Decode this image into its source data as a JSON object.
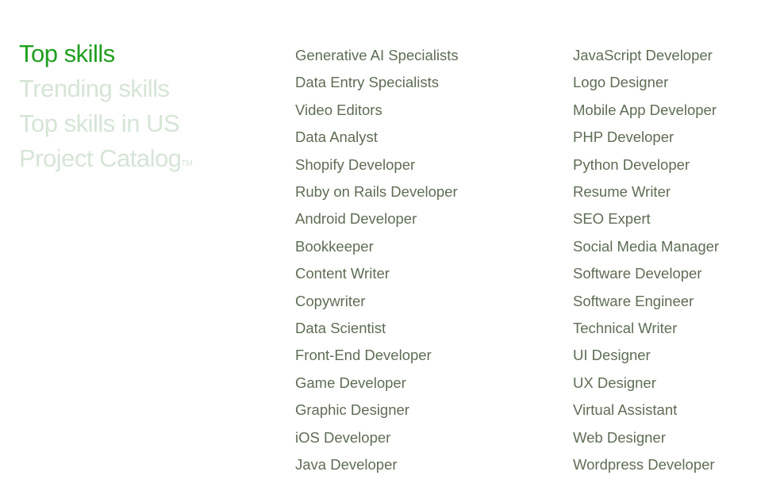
{
  "tabs": [
    {
      "label": "Top skills",
      "active": true
    },
    {
      "label": "Trending skills",
      "active": false
    },
    {
      "label": "Top skills in US",
      "active": false
    },
    {
      "label": "Project Catalog",
      "suffix": "TM",
      "active": false
    }
  ],
  "colors": {
    "active_tab": "#1f9e1f",
    "inactive_tab": "#d6e5d6",
    "link_text": "#5e6d55"
  },
  "skills": {
    "column1": [
      "Generative AI Specialists",
      "Data Entry Specialists",
      "Video Editors",
      "Data Analyst",
      "Shopify Developer",
      "Ruby on Rails Developer",
      "Android Developer",
      "Bookkeeper",
      "Content Writer",
      "Copywriter",
      "Data Scientist",
      "Front-End Developer",
      "Game Developer",
      "Graphic Designer",
      "iOS Developer",
      "Java Developer"
    ],
    "column2": [
      "JavaScript Developer",
      "Logo Designer",
      "Mobile App Developer",
      "PHP Developer",
      "Python Developer",
      "Resume Writer",
      "SEO Expert",
      "Social Media Manager",
      "Software Developer",
      "Software Engineer",
      "Technical Writer",
      "UI Designer",
      "UX Designer",
      "Virtual Assistant",
      "Web Designer",
      "Wordpress Developer"
    ]
  }
}
